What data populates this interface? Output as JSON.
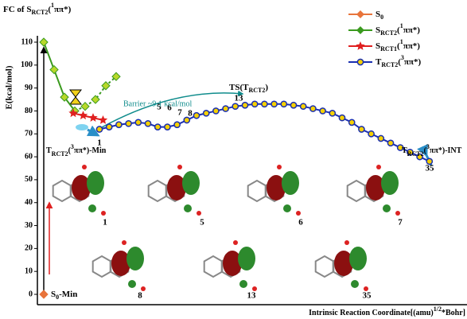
{
  "chart_data": {
    "type": "line",
    "title": [
      "FC of S",
      {
        "sub": "RCT2"
      },
      "(",
      {
        "sup": "1"
      },
      "ππ*)"
    ],
    "y_label": "E(kcal/mol)",
    "x_label": [
      "Intrinsic Reaction Coordinate[(amu)",
      {
        "sup": "1/2"
      },
      "*Bohr]"
    ],
    "ylim": [
      0,
      110
    ],
    "yticks": [
      0,
      10,
      20,
      30,
      40,
      50,
      60,
      70,
      80,
      90,
      100,
      110
    ],
    "series": [
      {
        "name": [
          "S",
          {
            "sub": "0"
          }
        ],
        "color": "#e8743b",
        "marker": "diamond",
        "values": [
          0
        ]
      },
      {
        "name": [
          "S",
          {
            "sub": "RCT2"
          },
          "(",
          {
            "sup": "1"
          },
          "ππ*)"
        ],
        "color": "#3a9a1e",
        "marker": "diamond",
        "values": [
          110,
          98,
          86,
          80,
          82,
          85,
          91,
          95
        ]
      },
      {
        "name": [
          "S",
          {
            "sub": "RCT1"
          },
          "(",
          {
            "sup": "1"
          },
          "ππ*)"
        ],
        "color": "#e02020",
        "marker": "star",
        "values": [
          79,
          78,
          77,
          76
        ]
      },
      {
        "name": [
          "T",
          {
            "sub": "RCT2"
          },
          "(",
          {
            "sup": "3"
          },
          "ππ*)"
        ],
        "color": "#1a2fb0",
        "marker": "circle",
        "values": [
          72,
          73,
          74,
          74.5,
          75,
          74.5,
          73,
          73,
          74,
          76,
          78,
          79,
          80,
          81,
          82,
          82.5,
          83,
          83,
          83,
          83,
          82.5,
          82,
          81,
          80,
          79,
          77,
          75,
          72,
          70,
          68,
          66,
          64,
          62,
          60,
          58
        ]
      }
    ],
    "point_labels": [
      "1",
      "5",
      "6",
      "7",
      "8",
      "13",
      "35"
    ],
    "structure_labels": [
      "1",
      "5",
      "6",
      "7",
      "8",
      "13",
      "35"
    ],
    "annotations": {
      "barrier": "Barrier ~9.1 kcal/mol",
      "ts": [
        "TS(T",
        {
          "sub": "RCT2"
        },
        ")"
      ],
      "int": [
        "T",
        {
          "sub": "RCT2"
        },
        "(",
        {
          "sup": "3"
        },
        "ππ*)-INT"
      ],
      "min": [
        "T",
        {
          "sub": "RCT2"
        },
        "(",
        {
          "sup": "3"
        },
        "ππ*)-Min"
      ],
      "s0min": [
        "S",
        {
          "sub": "0"
        },
        "-Min"
      ]
    }
  }
}
